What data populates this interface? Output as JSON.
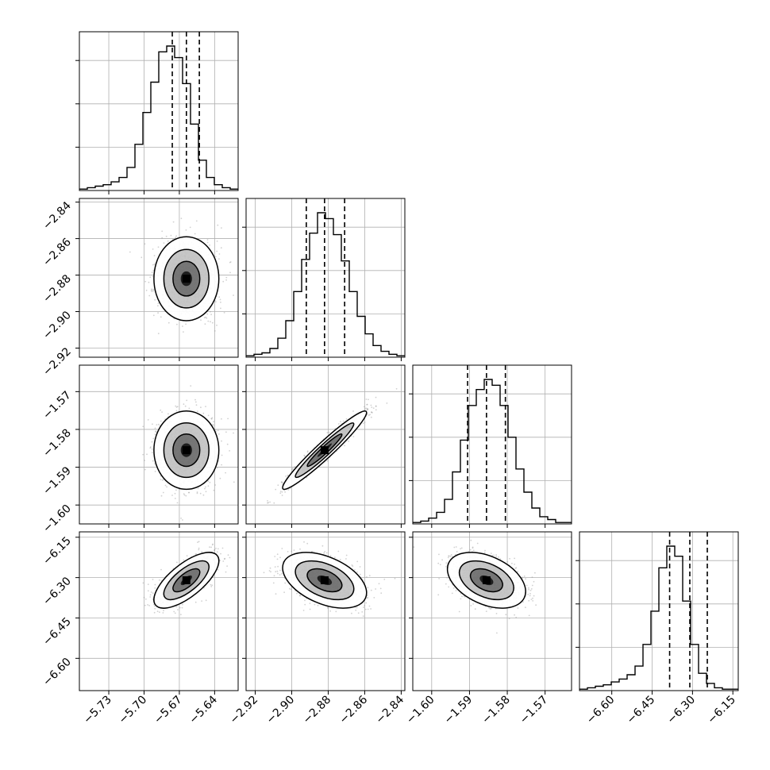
{
  "figure": {
    "title": ""
  },
  "chart_data": {
    "type": "corner",
    "params": [
      {
        "xlim": [
          -5.755,
          -5.62
        ],
        "xticks": [
          -5.73,
          -5.7,
          -5.67,
          -5.64
        ],
        "xtick_labels": [
          "−5.73",
          "−5.70",
          "−5.67",
          "−5.64"
        ],
        "center": -5.664,
        "sigma": 0.012
      },
      {
        "xlim": [
          -2.925,
          -2.838
        ],
        "xticks": [
          -2.92,
          -2.9,
          -2.88,
          -2.86,
          -2.84
        ],
        "xtick_labels": [
          "−2.92",
          "−2.90",
          "−2.88",
          "−2.86",
          "−2.84"
        ],
        "center": -2.882,
        "sigma": 0.01
      },
      {
        "xlim": [
          -1.605,
          -1.563
        ],
        "xticks": [
          -1.6,
          -1.59,
          -1.58,
          -1.57
        ],
        "xtick_labels": [
          "−1.60",
          "−1.59",
          "−1.58",
          "−1.57"
        ],
        "center": -1.5855,
        "sigma": 0.0045
      },
      {
        "xlim": [
          -6.72,
          -6.13
        ],
        "xticks": [
          -6.6,
          -6.45,
          -6.3,
          -6.15
        ],
        "xtick_labels": [
          "−6.60",
          "−6.45",
          "−6.30",
          "−6.15"
        ],
        "center": -6.31,
        "sigma": 0.045
      }
    ],
    "quantiles": [
      [
        -5.676,
        -5.664,
        -5.653
      ],
      [
        -2.892,
        -2.882,
        -2.871
      ],
      [
        -1.5905,
        -1.5855,
        -1.5805
      ],
      [
        -6.385,
        -6.31,
        -6.245
      ]
    ],
    "histograms": [
      [
        1,
        2,
        3,
        4,
        6,
        9,
        16,
        32,
        54,
        75,
        96,
        100,
        92,
        74,
        46,
        21,
        9,
        4,
        2,
        1
      ],
      [
        1,
        2,
        3,
        6,
        13,
        25,
        45,
        67,
        85,
        99,
        95,
        84,
        66,
        45,
        28,
        16,
        8,
        4,
        2,
        1
      ],
      [
        1,
        2,
        4,
        8,
        17,
        36,
        58,
        82,
        93,
        100,
        96,
        82,
        60,
        38,
        22,
        11,
        5,
        3,
        1,
        1
      ],
      [
        1,
        2,
        3,
        4,
        6,
        8,
        11,
        17,
        32,
        55,
        85,
        100,
        93,
        62,
        32,
        12,
        5,
        2,
        1,
        1
      ]
    ],
    "correlations": {
      "1-0": 0.0,
      "2-0": 0.0,
      "2-1": 0.96,
      "3-0": 0.7,
      "3-1": -0.45,
      "3-2": -0.4
    },
    "colors": {
      "hist": "#000000",
      "quantile": "#000000",
      "density": "#000000",
      "points": "#9a9a9a",
      "grid": "#b0b0b0"
    },
    "grid": true,
    "legend": "none"
  }
}
